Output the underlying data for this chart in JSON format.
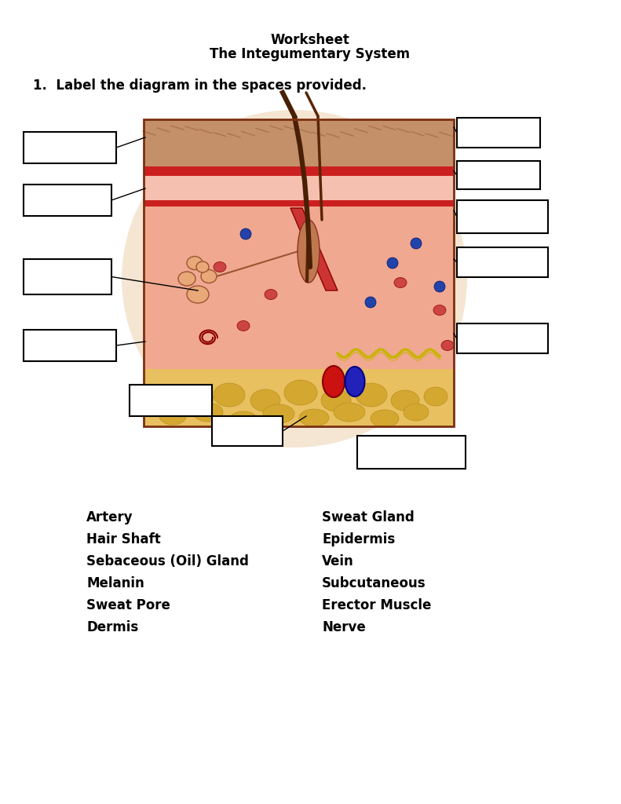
{
  "title_line1": "Worksheet",
  "title_line2": "The Integumentary System",
  "instruction": "1.  Label the diagram in the spaces provided.",
  "left_terms": [
    "Artery",
    "Hair Shaft",
    "Sebaceous (Oil) Gland",
    "Melanin",
    "Sweat Pore",
    "Dermis"
  ],
  "right_terms": [
    "Sweat Gland",
    "Epidermis",
    "Vein",
    "Subcutaneous",
    "Erector Muscle",
    "Nerve"
  ],
  "bg_color": "#ffffff"
}
